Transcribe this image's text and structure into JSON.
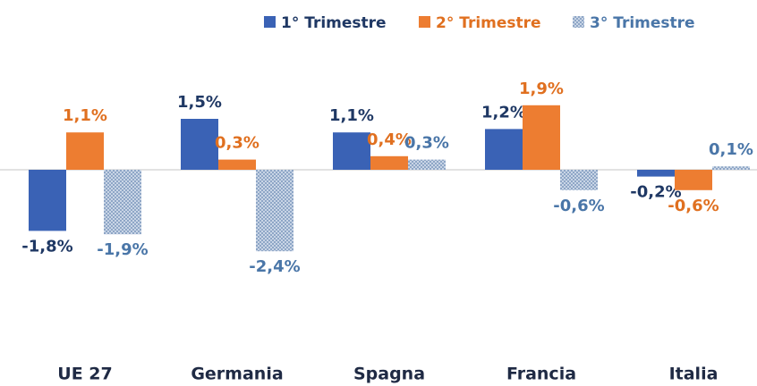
{
  "chart_data": {
    "type": "bar",
    "categories": [
      "UE 27",
      "Germania",
      "Spagna",
      "Francia",
      "Italia"
    ],
    "series": [
      {
        "name": "1° Trimestre",
        "color": "#3a62b5",
        "label_color": "#1f3864",
        "values": [
          -1.8,
          1.5,
          1.1,
          1.2,
          -0.2
        ],
        "value_labels": [
          "-1,8%",
          "1,5%",
          "1,1%",
          "1,2%",
          "-0,2%"
        ]
      },
      {
        "name": "2° Trimestre",
        "color": "#ed7d31",
        "label_color": "#e07020",
        "values": [
          1.1,
          0.3,
          0.4,
          1.9,
          -0.6
        ],
        "value_labels": [
          "1,1%",
          "0,3%",
          "0,4%",
          "1,9%",
          "-0,6%"
        ]
      },
      {
        "name": "3° Trimestre",
        "color": "#a9bcd6",
        "label_color": "#4a76a8",
        "pattern": true,
        "values": [
          -1.9,
          -2.4,
          0.3,
          -0.6,
          0.1
        ],
        "value_labels": [
          "-1,9%",
          "-2,4%",
          "0,3%",
          "-0,6%",
          "0,1%"
        ]
      }
    ],
    "legend": "top"
  }
}
